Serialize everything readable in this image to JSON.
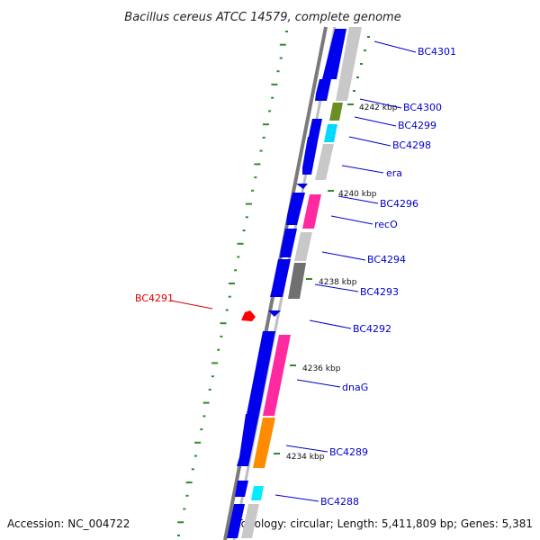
{
  "title": "Bacillus cereus ATCC 14579, complete genome",
  "accession": "Accession: NC_004722",
  "topology": "Topology: circular; Length: 5,411,809 bp; Genes: 5,381",
  "colors": {
    "backbone": "#8c8c8c",
    "gene_blue": "#0000ee",
    "label_blue": "#0000cc",
    "label_red": "#dd0000",
    "dot_green": "#2e8b2e",
    "grey": "#c0c0c0",
    "dark_grey": "#707070",
    "olive": "#6b8e23",
    "cyan": "#00d8ff",
    "magenta": "#ff2aa0",
    "orange": "#ff8c00",
    "red_gene": "#ff0000"
  },
  "gene_labels": [
    {
      "text": "BC4301",
      "color": "blue"
    },
    {
      "text": "BC4300",
      "color": "blue"
    },
    {
      "text": "BC4299",
      "color": "blue"
    },
    {
      "text": "BC4298",
      "color": "blue"
    },
    {
      "text": "era",
      "color": "blue"
    },
    {
      "text": "BC4296",
      "color": "blue"
    },
    {
      "text": "recO",
      "color": "blue"
    },
    {
      "text": "BC4294",
      "color": "blue"
    },
    {
      "text": "BC4293",
      "color": "blue"
    },
    {
      "text": "BC4292",
      "color": "blue"
    },
    {
      "text": "dnaG",
      "color": "blue"
    },
    {
      "text": "BC4289",
      "color": "blue"
    },
    {
      "text": "BC4288",
      "color": "blue"
    },
    {
      "text": "BC4291",
      "color": "red"
    }
  ],
  "tick_labels": [
    "4242 kbp",
    "4240 kbp",
    "4238 kbp",
    "4236 kbp",
    "4234 kbp"
  ]
}
